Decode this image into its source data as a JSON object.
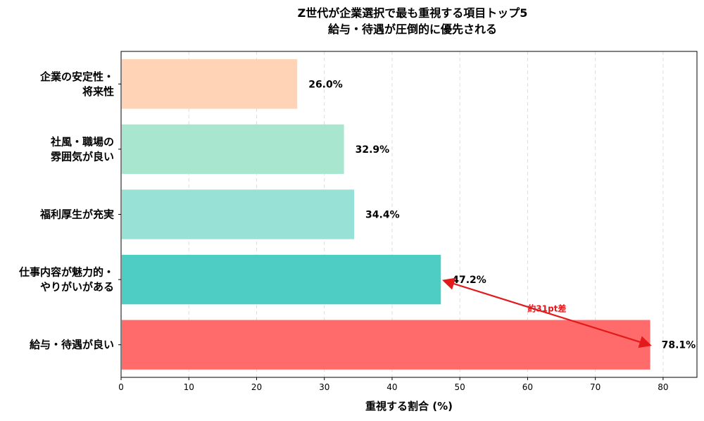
{
  "chart_data": {
    "type": "bar",
    "orientation": "horizontal",
    "title": [
      "Z世代が企業選択で最も重視する項目トップ5",
      "給与・待遇が圧倒的に優先される"
    ],
    "xlabel": "重視する割合 (%)",
    "ylabel": "",
    "xlim": [
      0,
      85
    ],
    "xticks": [
      0,
      10,
      20,
      30,
      40,
      50,
      60,
      70,
      80
    ],
    "grid": "x-dashed",
    "categories": [
      [
        "企業の安定性・",
        "将来性"
      ],
      [
        "社風・職場の",
        "雰囲気が良い"
      ],
      [
        "福利厚生が充実"
      ],
      [
        "仕事内容が魅力的・",
        "やりがいがある"
      ],
      [
        "給与・待遇が良い"
      ]
    ],
    "values": [
      26.0,
      32.9,
      34.4,
      47.2,
      78.1
    ],
    "data_labels": [
      "26.0%",
      "32.9%",
      "34.4%",
      "47.2%",
      "78.1%"
    ],
    "colors": [
      "#FFD3B6",
      "#A8E6CF",
      "#98E1D6",
      "#4ECDC4",
      "#FF6B6B"
    ],
    "annotation": {
      "text": "約31pt差",
      "color": "#E31A1C",
      "arrow_from": {
        "category_index": 4,
        "value": 78.1
      },
      "arrow_to": {
        "category_index": 3,
        "value": 47.2
      }
    }
  }
}
